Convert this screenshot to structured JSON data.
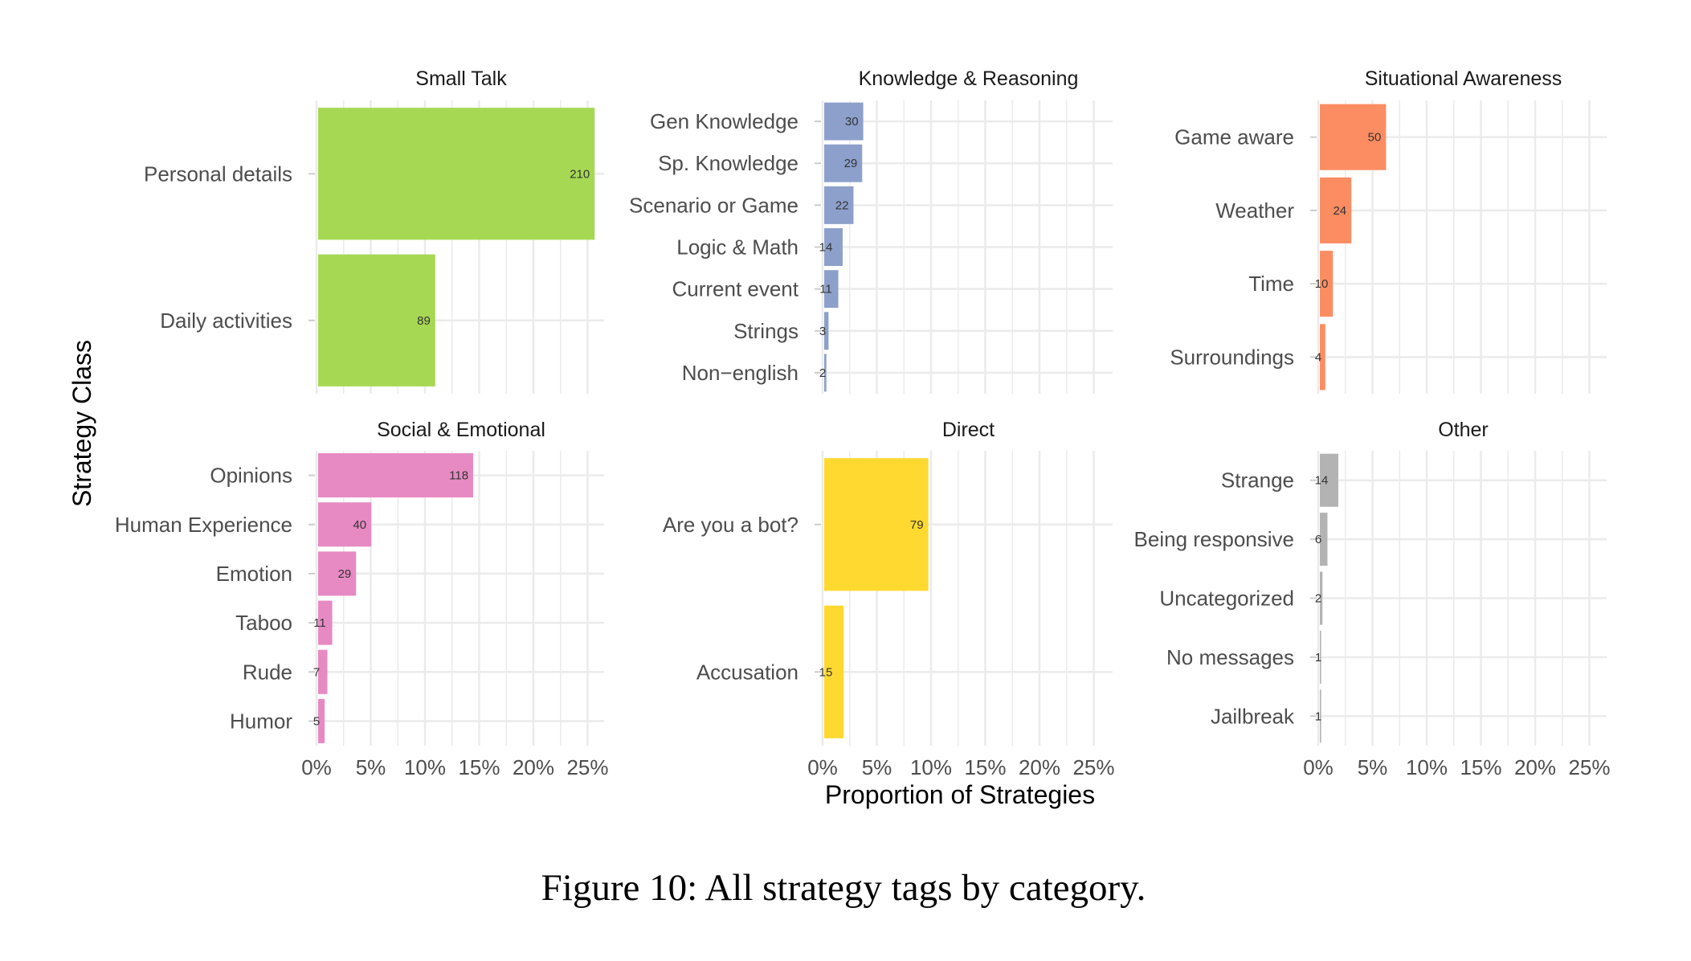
{
  "caption": "Figure 10: All strategy tags by category.",
  "chart_data": {
    "type": "bar",
    "orientation": "horizontal",
    "xlabel": "Proportion of Strategies",
    "ylabel": "Strategy Class",
    "x_ticks": [
      "0%",
      "5%",
      "10%",
      "15%",
      "20%",
      "25%"
    ],
    "xlim": [
      0,
      27
    ],
    "grid": true,
    "layout": "3x2 facets",
    "facets": [
      {
        "title": "Small Talk",
        "color": "#A6D854",
        "categories": [
          "Personal details",
          "Daily activities"
        ],
        "counts": [
          210,
          89
        ],
        "values_percent": [
          25.5,
          10.8
        ]
      },
      {
        "title": "Knowledge & Reasoning",
        "color": "#8DA0CB",
        "categories": [
          "Gen Knowledge",
          "Sp. Knowledge",
          "Scenario or Game",
          "Logic & Math",
          "Current event",
          "Strings",
          "Non−english"
        ],
        "counts": [
          30,
          29,
          22,
          14,
          11,
          3,
          2
        ],
        "values_percent": [
          3.6,
          3.5,
          2.7,
          1.7,
          1.3,
          0.4,
          0.2
        ]
      },
      {
        "title": "Situational Awareness",
        "color": "#FC8D62",
        "categories": [
          "Game aware",
          "Weather",
          "Time",
          "Surroundings"
        ],
        "counts": [
          50,
          24,
          10,
          4
        ],
        "values_percent": [
          6.1,
          2.9,
          1.2,
          0.5
        ]
      },
      {
        "title": "Social & Emotional",
        "color": "#E78AC3",
        "categories": [
          "Opinions",
          "Human Experience",
          "Emotion",
          "Taboo",
          "Rude",
          "Humor"
        ],
        "counts": [
          118,
          40,
          29,
          11,
          7,
          5
        ],
        "values_percent": [
          14.3,
          4.9,
          3.5,
          1.3,
          0.85,
          0.6
        ]
      },
      {
        "title": "Direct",
        "color": "#FFD92F",
        "categories": [
          "Are you a bot?",
          "Accusation"
        ],
        "counts": [
          79,
          15
        ],
        "values_percent": [
          9.6,
          1.8
        ]
      },
      {
        "title": "Other",
        "color": "#B3B3B3",
        "categories": [
          "Strange",
          "Being responsive",
          "Uncategorized",
          "No messages",
          "Jailbreak"
        ],
        "counts": [
          14,
          6,
          2,
          1,
          1
        ],
        "values_percent": [
          1.7,
          0.7,
          0.24,
          0.12,
          0.12
        ]
      }
    ]
  }
}
